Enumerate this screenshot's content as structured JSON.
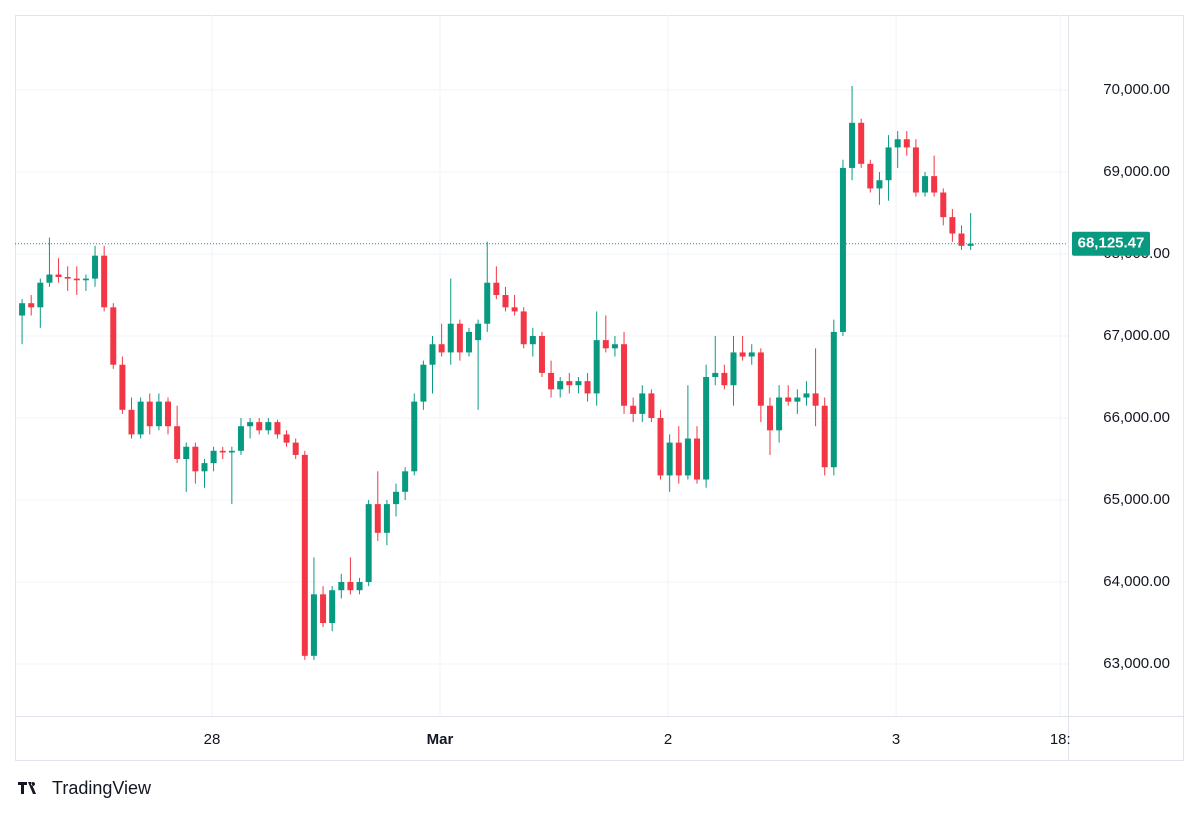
{
  "chart_data": {
    "type": "candlestick",
    "brand": "TradingView",
    "x": [
      27.167,
      27.207,
      27.247,
      27.287,
      27.327,
      27.367,
      27.407,
      27.447,
      27.487,
      27.527,
      27.567,
      27.607,
      27.647,
      27.687,
      27.727,
      27.767,
      27.807,
      27.847,
      27.887,
      27.927,
      27.967,
      28.007,
      28.047,
      28.087,
      28.127,
      28.167,
      28.207,
      28.247,
      28.287,
      28.327,
      28.367,
      28.407,
      28.447,
      28.487,
      28.527,
      28.567,
      28.607,
      28.647,
      28.687,
      28.727,
      28.767,
      28.807,
      28.847,
      28.887,
      28.927,
      28.967,
      29.007,
      29.047,
      29.087,
      29.127,
      29.167,
      29.207,
      29.247,
      29.287,
      29.327,
      29.367,
      29.407,
      29.447,
      29.487,
      29.527,
      29.567,
      29.607,
      29.647,
      29.687,
      29.727,
      29.767,
      29.807,
      29.847,
      29.887,
      29.927,
      29.967,
      30.007,
      30.047,
      30.087,
      30.127,
      30.167,
      30.207,
      30.247,
      30.287,
      30.327,
      30.367,
      30.407,
      30.447,
      30.487,
      30.527,
      30.567,
      30.607,
      30.647,
      30.687,
      30.727,
      30.767,
      30.807,
      30.847,
      30.887,
      30.927,
      30.967,
      31.007,
      31.047,
      31.087,
      31.127,
      31.167,
      31.207,
      31.247,
      31.287,
      31.327
    ],
    "open": [
      67250,
      67400,
      67350,
      67650,
      67750,
      67720,
      67700,
      67680,
      67700,
      67980,
      67350,
      66650,
      66100,
      65800,
      66200,
      65900,
      66200,
      65900,
      65500,
      65650,
      65350,
      65450,
      65600,
      65580,
      65600,
      65900,
      65950,
      65850,
      65950,
      65800,
      65700,
      65550,
      63100,
      63850,
      63500,
      63900,
      64000,
      63900,
      64000,
      64950,
      64600,
      64950,
      65100,
      65350,
      66200,
      66650,
      66900,
      66800,
      67150,
      66800,
      66950,
      67150,
      67650,
      67500,
      67350,
      67300,
      66900,
      67000,
      66550,
      66350,
      66450,
      66400,
      66450,
      66300,
      66950,
      66850,
      66900,
      66150,
      66050,
      66300,
      66000,
      65300,
      65700,
      65300,
      65750,
      65250,
      66500,
      66550,
      66400,
      66800,
      66750,
      66800,
      66150,
      65850,
      66250,
      66200,
      66250,
      66300,
      66150,
      65400,
      67050,
      69050,
      69600,
      69100,
      68800,
      68900,
      69300,
      69400,
      69300,
      68750,
      68950,
      68750,
      68450,
      68250,
      68100
    ],
    "high": [
      67450,
      67500,
      67700,
      68200,
      67950,
      67850,
      67850,
      67750,
      68100,
      68100,
      67400,
      66750,
      66250,
      66250,
      66300,
      66300,
      66250,
      66150,
      65700,
      65700,
      65500,
      65650,
      65650,
      65650,
      66000,
      66000,
      66000,
      66000,
      65980,
      65850,
      65750,
      65600,
      64300,
      63950,
      63950,
      64100,
      64300,
      64050,
      65000,
      65350,
      65000,
      65200,
      65400,
      66300,
      66700,
      67000,
      67150,
      67700,
      67200,
      67100,
      67200,
      68150,
      67850,
      67600,
      67500,
      67350,
      67100,
      67050,
      66700,
      66500,
      66550,
      66500,
      66550,
      67300,
      67250,
      67000,
      67050,
      66250,
      66400,
      66350,
      66100,
      65800,
      65900,
      66400,
      65900,
      66650,
      67000,
      66650,
      67000,
      67000,
      66900,
      66850,
      66250,
      66400,
      66400,
      66350,
      66450,
      66850,
      66250,
      67200,
      69150,
      70050,
      69650,
      69150,
      69000,
      69450,
      69500,
      69500,
      69400,
      69000,
      69200,
      68800,
      68550,
      68350,
      68500
    ],
    "low": [
      66900,
      67250,
      67100,
      67600,
      67650,
      67550,
      67500,
      67550,
      67600,
      67300,
      66600,
      66050,
      65750,
      65750,
      65800,
      65850,
      65800,
      65450,
      65100,
      65200,
      65150,
      65350,
      65500,
      64950,
      65550,
      65750,
      65800,
      65800,
      65750,
      65650,
      65500,
      63050,
      63050,
      63450,
      63400,
      63800,
      63850,
      63850,
      63950,
      64500,
      64450,
      64800,
      65000,
      65300,
      66100,
      66300,
      66750,
      66650,
      66700,
      66750,
      66100,
      67050,
      67450,
      67300,
      67250,
      66850,
      66750,
      66500,
      66250,
      66250,
      66300,
      66300,
      66200,
      66150,
      66800,
      66750,
      66050,
      65950,
      65950,
      65950,
      65250,
      65100,
      65200,
      65250,
      65200,
      65150,
      66400,
      66350,
      66150,
      66700,
      66650,
      65950,
      65550,
      65700,
      66150,
      66050,
      66150,
      65900,
      65300,
      65300,
      67000,
      68900,
      69050,
      68750,
      68600,
      68650,
      69050,
      69200,
      68700,
      68700,
      68700,
      68350,
      68150,
      68050,
      68050
    ],
    "close": [
      67400,
      67350,
      67650,
      67750,
      67720,
      67700,
      67680,
      67700,
      67980,
      67350,
      66650,
      66100,
      65800,
      66200,
      65900,
      66200,
      65900,
      65500,
      65650,
      65350,
      65450,
      65600,
      65580,
      65600,
      65900,
      65950,
      65850,
      65950,
      65800,
      65700,
      65550,
      63100,
      63850,
      63500,
      63900,
      64000,
      63900,
      64000,
      64950,
      64600,
      64950,
      65100,
      65350,
      66200,
      66650,
      66900,
      66800,
      67150,
      66800,
      67050,
      67150,
      67650,
      67500,
      67350,
      67300,
      66900,
      67000,
      66550,
      66350,
      66450,
      66400,
      66450,
      66300,
      66950,
      66850,
      66900,
      66150,
      66050,
      66300,
      66000,
      65300,
      65700,
      65300,
      65750,
      65250,
      66500,
      66550,
      66400,
      66800,
      66750,
      66800,
      66150,
      65850,
      66250,
      66200,
      66250,
      66300,
      66150,
      65400,
      67050,
      69050,
      69600,
      69100,
      68800,
      68900,
      69300,
      69400,
      69300,
      68750,
      68950,
      68750,
      68450,
      68250,
      68100,
      68125.47
    ],
    "up_color": "#089981",
    "down_color": "#f23645",
    "last_price": {
      "value": 68125.47,
      "label": "68,125.47"
    },
    "xlim": [
      27.136,
      31.754
    ],
    "ylim": [
      62366,
      70915
    ],
    "xticks": [
      28,
      {
        "value": 29,
        "label": "Mar"
      },
      {
        "value": 30,
        "label": "2"
      },
      {
        "value": 31,
        "label": "3"
      },
      {
        "value": 31.72,
        "label": "18:"
      }
    ],
    "yticks": [
      {
        "value": 63000,
        "label": "63,000.00"
      },
      {
        "value": 64000,
        "label": "64,000.00"
      },
      {
        "value": 65000,
        "label": "65,000.00"
      },
      {
        "value": 66000,
        "label": "66,000.00"
      },
      {
        "value": 67000,
        "label": "67,000.00"
      },
      {
        "value": 68000,
        "label": "68,000.00"
      },
      {
        "value": 69000,
        "label": "69,000.00"
      },
      {
        "value": 70000,
        "label": "70,000.00"
      }
    ],
    "grid": true
  }
}
